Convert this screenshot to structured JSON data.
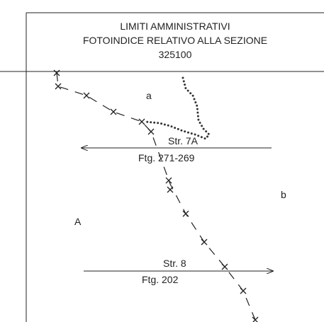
{
  "header": {
    "lines": [
      "LIMITI AMMINISTRATIVI",
      "FOTOINDICE RELATIVO ALLA SEZIONE",
      "325100"
    ]
  },
  "map": {
    "areas": [
      "a",
      "b",
      "A"
    ],
    "streets": [
      {
        "name": "Str. 7A",
        "sheet": "Ftg. 271-269"
      },
      {
        "name": "Str. 8",
        "sheet": "Ftg. 202"
      }
    ]
  }
}
